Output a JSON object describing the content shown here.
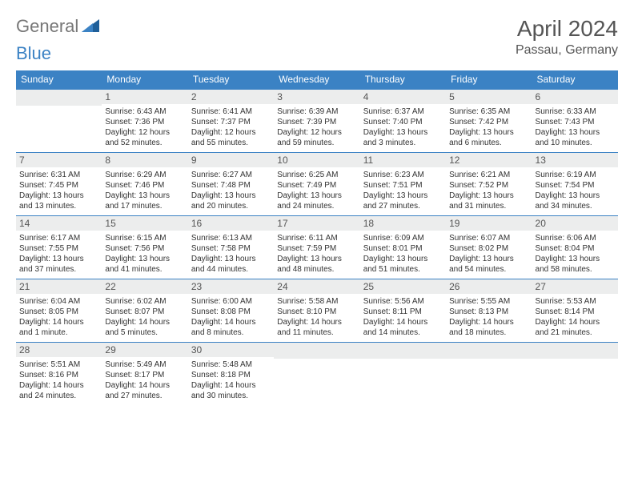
{
  "logo": {
    "text1": "General",
    "text2": "Blue"
  },
  "title": "April 2024",
  "location": "Passau, Germany",
  "header_bg": "#3b82c4",
  "header_fg": "#ffffff",
  "daynum_bg": "#eceded",
  "border_color": "#3b82c4",
  "weekdays": [
    "Sunday",
    "Monday",
    "Tuesday",
    "Wednesday",
    "Thursday",
    "Friday",
    "Saturday"
  ],
  "weeks": [
    [
      {
        "n": "",
        "lines": []
      },
      {
        "n": "1",
        "lines": [
          "Sunrise: 6:43 AM",
          "Sunset: 7:36 PM",
          "Daylight: 12 hours and 52 minutes."
        ]
      },
      {
        "n": "2",
        "lines": [
          "Sunrise: 6:41 AM",
          "Sunset: 7:37 PM",
          "Daylight: 12 hours and 55 minutes."
        ]
      },
      {
        "n": "3",
        "lines": [
          "Sunrise: 6:39 AM",
          "Sunset: 7:39 PM",
          "Daylight: 12 hours and 59 minutes."
        ]
      },
      {
        "n": "4",
        "lines": [
          "Sunrise: 6:37 AM",
          "Sunset: 7:40 PM",
          "Daylight: 13 hours and 3 minutes."
        ]
      },
      {
        "n": "5",
        "lines": [
          "Sunrise: 6:35 AM",
          "Sunset: 7:42 PM",
          "Daylight: 13 hours and 6 minutes."
        ]
      },
      {
        "n": "6",
        "lines": [
          "Sunrise: 6:33 AM",
          "Sunset: 7:43 PM",
          "Daylight: 13 hours and 10 minutes."
        ]
      }
    ],
    [
      {
        "n": "7",
        "lines": [
          "Sunrise: 6:31 AM",
          "Sunset: 7:45 PM",
          "Daylight: 13 hours and 13 minutes."
        ]
      },
      {
        "n": "8",
        "lines": [
          "Sunrise: 6:29 AM",
          "Sunset: 7:46 PM",
          "Daylight: 13 hours and 17 minutes."
        ]
      },
      {
        "n": "9",
        "lines": [
          "Sunrise: 6:27 AM",
          "Sunset: 7:48 PM",
          "Daylight: 13 hours and 20 minutes."
        ]
      },
      {
        "n": "10",
        "lines": [
          "Sunrise: 6:25 AM",
          "Sunset: 7:49 PM",
          "Daylight: 13 hours and 24 minutes."
        ]
      },
      {
        "n": "11",
        "lines": [
          "Sunrise: 6:23 AM",
          "Sunset: 7:51 PM",
          "Daylight: 13 hours and 27 minutes."
        ]
      },
      {
        "n": "12",
        "lines": [
          "Sunrise: 6:21 AM",
          "Sunset: 7:52 PM",
          "Daylight: 13 hours and 31 minutes."
        ]
      },
      {
        "n": "13",
        "lines": [
          "Sunrise: 6:19 AM",
          "Sunset: 7:54 PM",
          "Daylight: 13 hours and 34 minutes."
        ]
      }
    ],
    [
      {
        "n": "14",
        "lines": [
          "Sunrise: 6:17 AM",
          "Sunset: 7:55 PM",
          "Daylight: 13 hours and 37 minutes."
        ]
      },
      {
        "n": "15",
        "lines": [
          "Sunrise: 6:15 AM",
          "Sunset: 7:56 PM",
          "Daylight: 13 hours and 41 minutes."
        ]
      },
      {
        "n": "16",
        "lines": [
          "Sunrise: 6:13 AM",
          "Sunset: 7:58 PM",
          "Daylight: 13 hours and 44 minutes."
        ]
      },
      {
        "n": "17",
        "lines": [
          "Sunrise: 6:11 AM",
          "Sunset: 7:59 PM",
          "Daylight: 13 hours and 48 minutes."
        ]
      },
      {
        "n": "18",
        "lines": [
          "Sunrise: 6:09 AM",
          "Sunset: 8:01 PM",
          "Daylight: 13 hours and 51 minutes."
        ]
      },
      {
        "n": "19",
        "lines": [
          "Sunrise: 6:07 AM",
          "Sunset: 8:02 PM",
          "Daylight: 13 hours and 54 minutes."
        ]
      },
      {
        "n": "20",
        "lines": [
          "Sunrise: 6:06 AM",
          "Sunset: 8:04 PM",
          "Daylight: 13 hours and 58 minutes."
        ]
      }
    ],
    [
      {
        "n": "21",
        "lines": [
          "Sunrise: 6:04 AM",
          "Sunset: 8:05 PM",
          "Daylight: 14 hours and 1 minute."
        ]
      },
      {
        "n": "22",
        "lines": [
          "Sunrise: 6:02 AM",
          "Sunset: 8:07 PM",
          "Daylight: 14 hours and 5 minutes."
        ]
      },
      {
        "n": "23",
        "lines": [
          "Sunrise: 6:00 AM",
          "Sunset: 8:08 PM",
          "Daylight: 14 hours and 8 minutes."
        ]
      },
      {
        "n": "24",
        "lines": [
          "Sunrise: 5:58 AM",
          "Sunset: 8:10 PM",
          "Daylight: 14 hours and 11 minutes."
        ]
      },
      {
        "n": "25",
        "lines": [
          "Sunrise: 5:56 AM",
          "Sunset: 8:11 PM",
          "Daylight: 14 hours and 14 minutes."
        ]
      },
      {
        "n": "26",
        "lines": [
          "Sunrise: 5:55 AM",
          "Sunset: 8:13 PM",
          "Daylight: 14 hours and 18 minutes."
        ]
      },
      {
        "n": "27",
        "lines": [
          "Sunrise: 5:53 AM",
          "Sunset: 8:14 PM",
          "Daylight: 14 hours and 21 minutes."
        ]
      }
    ],
    [
      {
        "n": "28",
        "lines": [
          "Sunrise: 5:51 AM",
          "Sunset: 8:16 PM",
          "Daylight: 14 hours and 24 minutes."
        ]
      },
      {
        "n": "29",
        "lines": [
          "Sunrise: 5:49 AM",
          "Sunset: 8:17 PM",
          "Daylight: 14 hours and 27 minutes."
        ]
      },
      {
        "n": "30",
        "lines": [
          "Sunrise: 5:48 AM",
          "Sunset: 8:18 PM",
          "Daylight: 14 hours and 30 minutes."
        ]
      },
      {
        "n": "",
        "lines": []
      },
      {
        "n": "",
        "lines": []
      },
      {
        "n": "",
        "lines": []
      },
      {
        "n": "",
        "lines": []
      }
    ]
  ]
}
